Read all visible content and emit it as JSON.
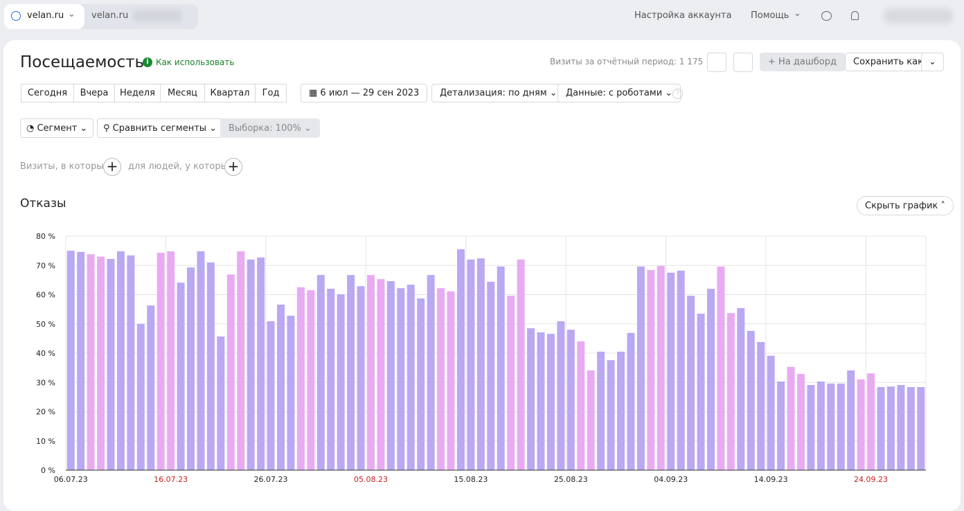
{
  "header": {
    "counter_tab": "velan.ru",
    "second_tab": "velan.ru",
    "account_settings": "Настройка аккаунта",
    "help": "Помощь"
  },
  "report": {
    "title": "Посещаемость",
    "how_to_use": "Как использовать",
    "visits_total": "Визиты за отчётный период: 1 175",
    "to_dashboard": "На дашборд",
    "save_as": "Сохранить как"
  },
  "periods": [
    "Сегодня",
    "Вчера",
    "Неделя",
    "Месяц",
    "Квартал",
    "Год"
  ],
  "filters": {
    "date_range": "6 июл — 29 сен 2023",
    "detail": "Детализация: по дням",
    "data": "Данные: с роботами",
    "segment": "Сегмент",
    "compare": "Сравнить сегменты",
    "sample": "Выборка: 100%",
    "visits_where": "Визиты, в которых",
    "people_where": "для людей, у которых"
  },
  "chart_toggle": "Скрыть график",
  "chart_data": {
    "type": "bar",
    "title": "Отказы",
    "categories": [
      "06.07.23",
      null,
      null,
      null,
      null,
      null,
      null,
      null,
      null,
      null,
      "16.07.23",
      null,
      null,
      null,
      null,
      null,
      null,
      null,
      null,
      null,
      "26.07.23",
      null,
      null,
      null,
      null,
      null,
      null,
      null,
      null,
      null,
      "05.08.23",
      null,
      null,
      null,
      null,
      null,
      null,
      null,
      null,
      null,
      "15.08.23",
      null,
      null,
      null,
      null,
      null,
      null,
      null,
      null,
      null,
      "25.08.23",
      null,
      null,
      null,
      null,
      null,
      null,
      null,
      null,
      null,
      "04.09.23",
      null,
      null,
      null,
      null,
      null,
      null,
      null,
      null,
      null,
      "14.09.23",
      null,
      null,
      null,
      null,
      null,
      null,
      null,
      null,
      null,
      "24.09.23",
      null,
      null,
      null,
      null,
      null
    ],
    "values": [
      75,
      74.6,
      73.8,
      73,
      72.2,
      74.8,
      73.4,
      50,
      56.3,
      74.3,
      74.8,
      64.1,
      69.3,
      74.8,
      71,
      45.7,
      66.9,
      74.8,
      72,
      72.7,
      50.9,
      56.6,
      52.8,
      62.5,
      61.5,
      66.7,
      62,
      60.1,
      66.7,
      62.9,
      66.7,
      65.3,
      64.6,
      62.2,
      63.4,
      58.7,
      66.7,
      62.2,
      61.1,
      75.5,
      72,
      72.4,
      64.4,
      69.6,
      59.6,
      72,
      48.5,
      47.1,
      46.6,
      50.9,
      48,
      44,
      34.1,
      40.5,
      37.6,
      40.5,
      46.9,
      69.6,
      68.4,
      69.8,
      67.5,
      68.2,
      59.6,
      53.5,
      62,
      69.6,
      53.7,
      55.4,
      47.6,
      43.8,
      39.1,
      30.3,
      35.3,
      32.9,
      29.1,
      30.3,
      29.6,
      29.6,
      34.1,
      31,
      33.1,
      28.4,
      28.6,
      29.1,
      28.4,
      28.4
    ],
    "colors": [
      "#baa8f2",
      "#baa8f2",
      "#e8abf2",
      "#e8abf2",
      "#baa8f2",
      "#baa8f2",
      "#baa8f2",
      "#baa8f2",
      "#baa8f2",
      "#e8abf2",
      "#e8abf2",
      "#baa8f2",
      "#baa8f2",
      "#baa8f2",
      "#baa8f2",
      "#baa8f2",
      "#e8abf2",
      "#e8abf2",
      "#baa8f2",
      "#baa8f2",
      "#baa8f2",
      "#baa8f2",
      "#baa8f2",
      "#e8abf2",
      "#e8abf2",
      "#baa8f2",
      "#baa8f2",
      "#baa8f2",
      "#baa8f2",
      "#baa8f2",
      "#e8abf2",
      "#e8abf2",
      "#baa8f2",
      "#baa8f2",
      "#baa8f2",
      "#baa8f2",
      "#baa8f2",
      "#e8abf2",
      "#e8abf2",
      "#baa8f2",
      "#baa8f2",
      "#baa8f2",
      "#baa8f2",
      "#baa8f2",
      "#e8abf2",
      "#e8abf2",
      "#baa8f2",
      "#baa8f2",
      "#baa8f2",
      "#baa8f2",
      "#baa8f2",
      "#e8abf2",
      "#e8abf2",
      "#baa8f2",
      "#baa8f2",
      "#baa8f2",
      "#baa8f2",
      "#baa8f2",
      "#e8abf2",
      "#e8abf2",
      "#baa8f2",
      "#baa8f2",
      "#baa8f2",
      "#baa8f2",
      "#baa8f2",
      "#e8abf2",
      "#e8abf2",
      "#baa8f2",
      "#baa8f2",
      "#baa8f2",
      "#baa8f2",
      "#baa8f2",
      "#e8abf2",
      "#e8abf2",
      "#baa8f2",
      "#baa8f2",
      "#baa8f2",
      "#baa8f2",
      "#baa8f2",
      "#e8abf2",
      "#e8abf2",
      "#baa8f2",
      "#baa8f2",
      "#baa8f2",
      "#baa8f2",
      "#baa8f2"
    ],
    "ylim": [
      0,
      80
    ],
    "yticks": [
      {
        "value": 0,
        "label": "0 %"
      },
      {
        "value": 10,
        "label": "10 %"
      },
      {
        "value": 20,
        "label": "20 %"
      },
      {
        "value": 30,
        "label": "30 %"
      },
      {
        "value": 40,
        "label": "40 %"
      },
      {
        "value": 50,
        "label": "50 %"
      },
      {
        "value": 60,
        "label": "60 %"
      },
      {
        "value": 70,
        "label": "70 %"
      },
      {
        "value": 80,
        "label": "80 %"
      }
    ],
    "grid": true
  }
}
